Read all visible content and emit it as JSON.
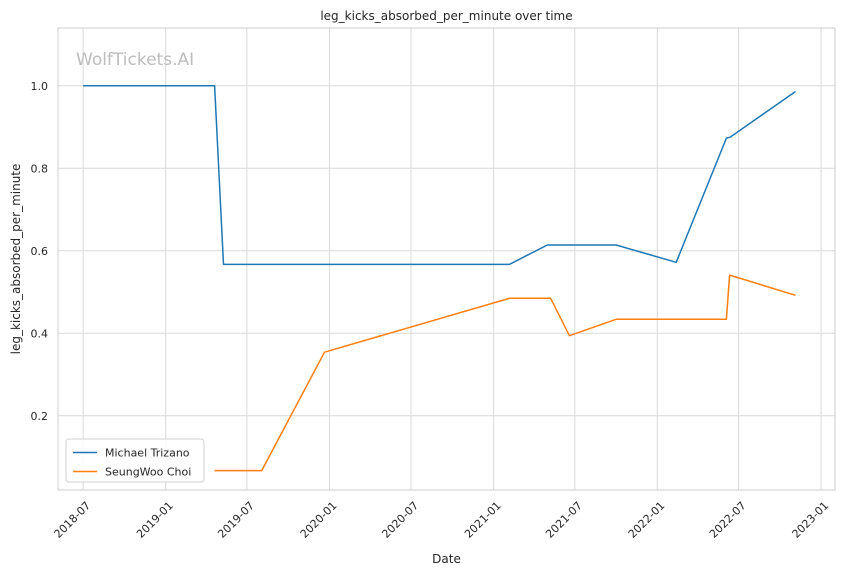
{
  "chart_data": {
    "type": "line",
    "title": "leg_kicks_absorbed_per_minute over time",
    "xlabel": "Date",
    "ylabel": "leg_kicks_absorbed_per_minute",
    "watermark": "WolfTickets.AI",
    "x_ticks": [
      "2018-07",
      "2019-01",
      "2019-07",
      "2020-01",
      "2020-07",
      "2021-01",
      "2021-07",
      "2022-01",
      "2022-07",
      "2023-01"
    ],
    "y_ticks": [
      0.2,
      0.4,
      0.6,
      0.8,
      1.0
    ],
    "xlim": [
      "2018-05-06",
      "2023-02-01"
    ],
    "ylim": [
      0.02,
      1.14
    ],
    "grid": true,
    "legend": "lower left",
    "series": [
      {
        "name": "Michael Trizano",
        "color": "#1f77b4",
        "points": [
          {
            "x": "2018-07-01",
            "y": 1.0
          },
          {
            "x": "2019-04-20",
            "y": 1.0
          },
          {
            "x": "2019-05-10",
            "y": 0.567
          },
          {
            "x": "2021-02-05",
            "y": 0.567
          },
          {
            "x": "2021-05-01",
            "y": 0.614
          },
          {
            "x": "2021-10-01",
            "y": 0.614
          },
          {
            "x": "2022-02-12",
            "y": 0.572
          },
          {
            "x": "2022-06-04",
            "y": 0.873
          },
          {
            "x": "2022-06-12",
            "y": 0.875
          },
          {
            "x": "2022-11-05",
            "y": 0.986
          }
        ]
      },
      {
        "name": "SeungWoo Choi",
        "color": "#ff7f0e",
        "points": [
          {
            "x": "2019-04-20",
            "y": 0.067
          },
          {
            "x": "2019-08-03",
            "y": 0.067
          },
          {
            "x": "2019-12-21",
            "y": 0.354
          },
          {
            "x": "2021-02-06",
            "y": 0.485
          },
          {
            "x": "2021-05-08",
            "y": 0.485
          },
          {
            "x": "2021-06-19",
            "y": 0.394
          },
          {
            "x": "2021-10-02",
            "y": 0.434
          },
          {
            "x": "2022-06-04",
            "y": 0.434
          },
          {
            "x": "2022-06-11",
            "y": 0.541
          },
          {
            "x": "2022-11-05",
            "y": 0.492
          }
        ]
      }
    ]
  }
}
